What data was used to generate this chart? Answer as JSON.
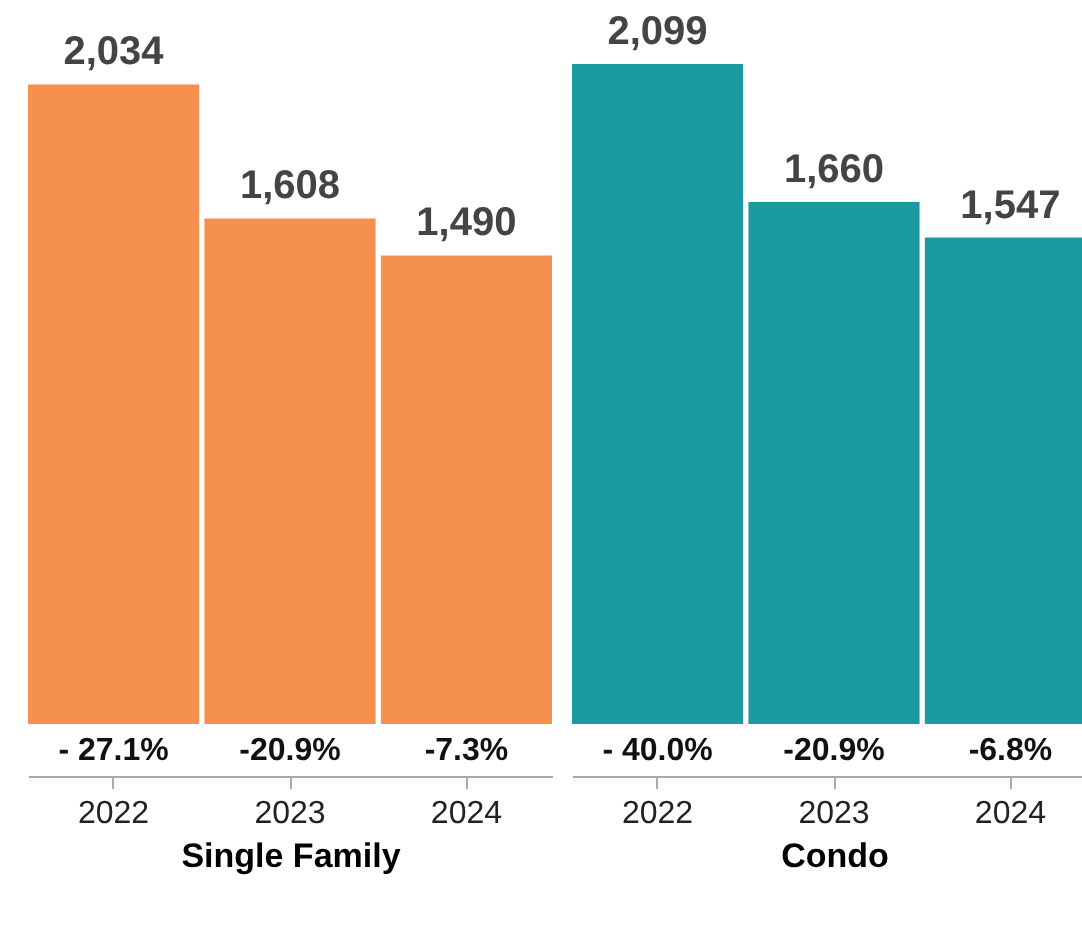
{
  "chart_data": [
    {
      "type": "bar",
      "xlabel": "Single Family",
      "categories": [
        "2022",
        "2023",
        "2024"
      ],
      "values": [
        2034,
        1608,
        1490
      ],
      "color": "#f5904f",
      "value_labels": [
        "2,034",
        "1,608",
        "1,490"
      ],
      "annotations": [
        "- 27.1%",
        "-20.9%",
        "-7.3%"
      ]
    },
    {
      "type": "bar",
      "xlabel": "Condo",
      "categories": [
        "2022",
        "2023",
        "2024"
      ],
      "values": [
        2099,
        1660,
        1547
      ],
      "color": "#1b9aa1",
      "value_labels": [
        "2,099",
        "1,660",
        "1,547"
      ],
      "annotations": [
        "- 40.0%",
        "-20.9%",
        "-6.8%"
      ]
    }
  ]
}
